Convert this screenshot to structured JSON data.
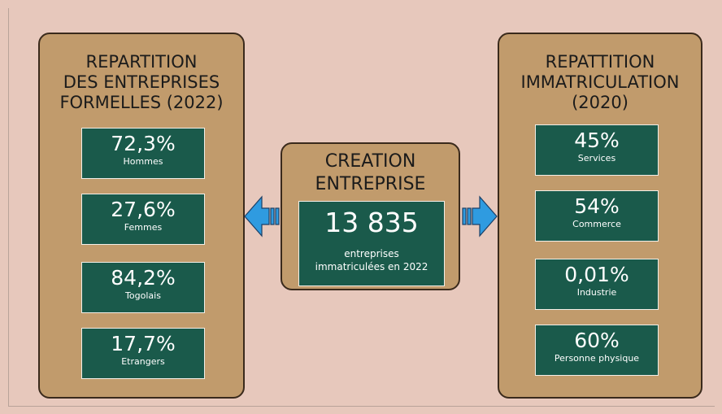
{
  "left": {
    "title": [
      "REPARTITION",
      "DES ENTREPRISES",
      "FORMELLES (2022)"
    ],
    "items": [
      {
        "value": "72,3%",
        "label": "Hommes"
      },
      {
        "value": "27,6%",
        "label": "Femmes"
      },
      {
        "value": "84,2%",
        "label": "Togolais"
      },
      {
        "value": "17,7%",
        "label": "Etrangers"
      }
    ]
  },
  "center": {
    "title": [
      "CREATION",
      "ENTREPRISE"
    ],
    "value": "13 835",
    "label": [
      "entreprises",
      "immatriculées en  2022"
    ]
  },
  "right": {
    "title": [
      "REPATTITION",
      "IMMATRICULATION",
      "(2020)"
    ],
    "items": [
      {
        "value": "45%",
        "label": "Services"
      },
      {
        "value": "54%",
        "label": "Commerce"
      },
      {
        "value": "0,01%",
        "label": "Industrie"
      },
      {
        "value": "60%",
        "label": "Personne physique"
      }
    ]
  }
}
